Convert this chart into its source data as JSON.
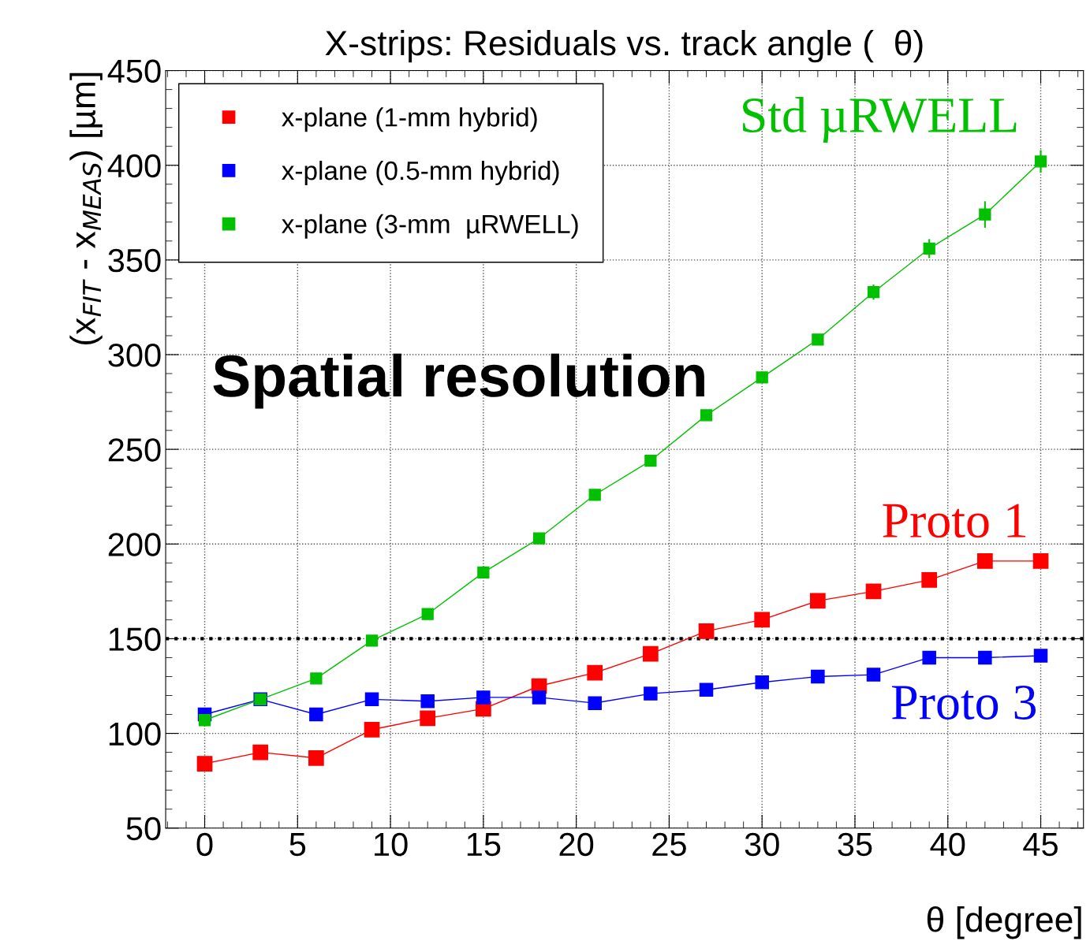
{
  "chart_data": {
    "type": "line",
    "title": "X-strips: Residuals vs. track angle (  θ)",
    "xlabel": "θ [degree]",
    "ylabel": "(x$_{FIT}$ - x$_{MEAS}$) [µm]",
    "x": [
      0,
      3,
      6,
      9,
      12,
      15,
      18,
      21,
      24,
      27,
      30,
      33,
      36,
      39,
      42,
      45
    ],
    "series": [
      {
        "name": "x-plane (1-mm hybrid)",
        "color": "#ff0000",
        "values": [
          84,
          90,
          87,
          102,
          108,
          113,
          125,
          132,
          142,
          154,
          160,
          170,
          175,
          181,
          191,
          191
        ]
      },
      {
        "name": "x-plane (0.5-mm hybrid)",
        "color": "#0000ff",
        "values": [
          110,
          118,
          110,
          118,
          117,
          119,
          119,
          116,
          121,
          123,
          127,
          130,
          131,
          140,
          140,
          141
        ]
      },
      {
        "name": "x-plane (3-mm  µRWELL)",
        "color": "#00c000",
        "values": [
          107,
          118,
          129,
          149,
          163,
          185,
          203,
          226,
          244,
          268,
          288,
          308,
          333,
          356,
          374,
          402
        ],
        "errors": [
          null,
          null,
          null,
          null,
          null,
          null,
          null,
          null,
          null,
          null,
          null,
          null,
          4,
          5,
          7,
          6
        ]
      }
    ],
    "xlim": [
      -2.1,
      47.3
    ],
    "ylim": [
      50,
      450
    ],
    "xticks": [
      0,
      5,
      10,
      15,
      20,
      25,
      30,
      35,
      40,
      45
    ],
    "yticks": [
      50,
      100,
      150,
      200,
      250,
      300,
      350,
      400,
      450
    ],
    "grid": true,
    "legend": "top left",
    "marker": "square",
    "line_style": "solid",
    "ref_lines": [
      {
        "axis": "y",
        "value": 150,
        "color": "#000000",
        "line_style": "dotted"
      }
    ],
    "annotations": [
      "Std µRWELL",
      "Proto 1",
      "Proto 3",
      "Spatial resolution"
    ]
  }
}
